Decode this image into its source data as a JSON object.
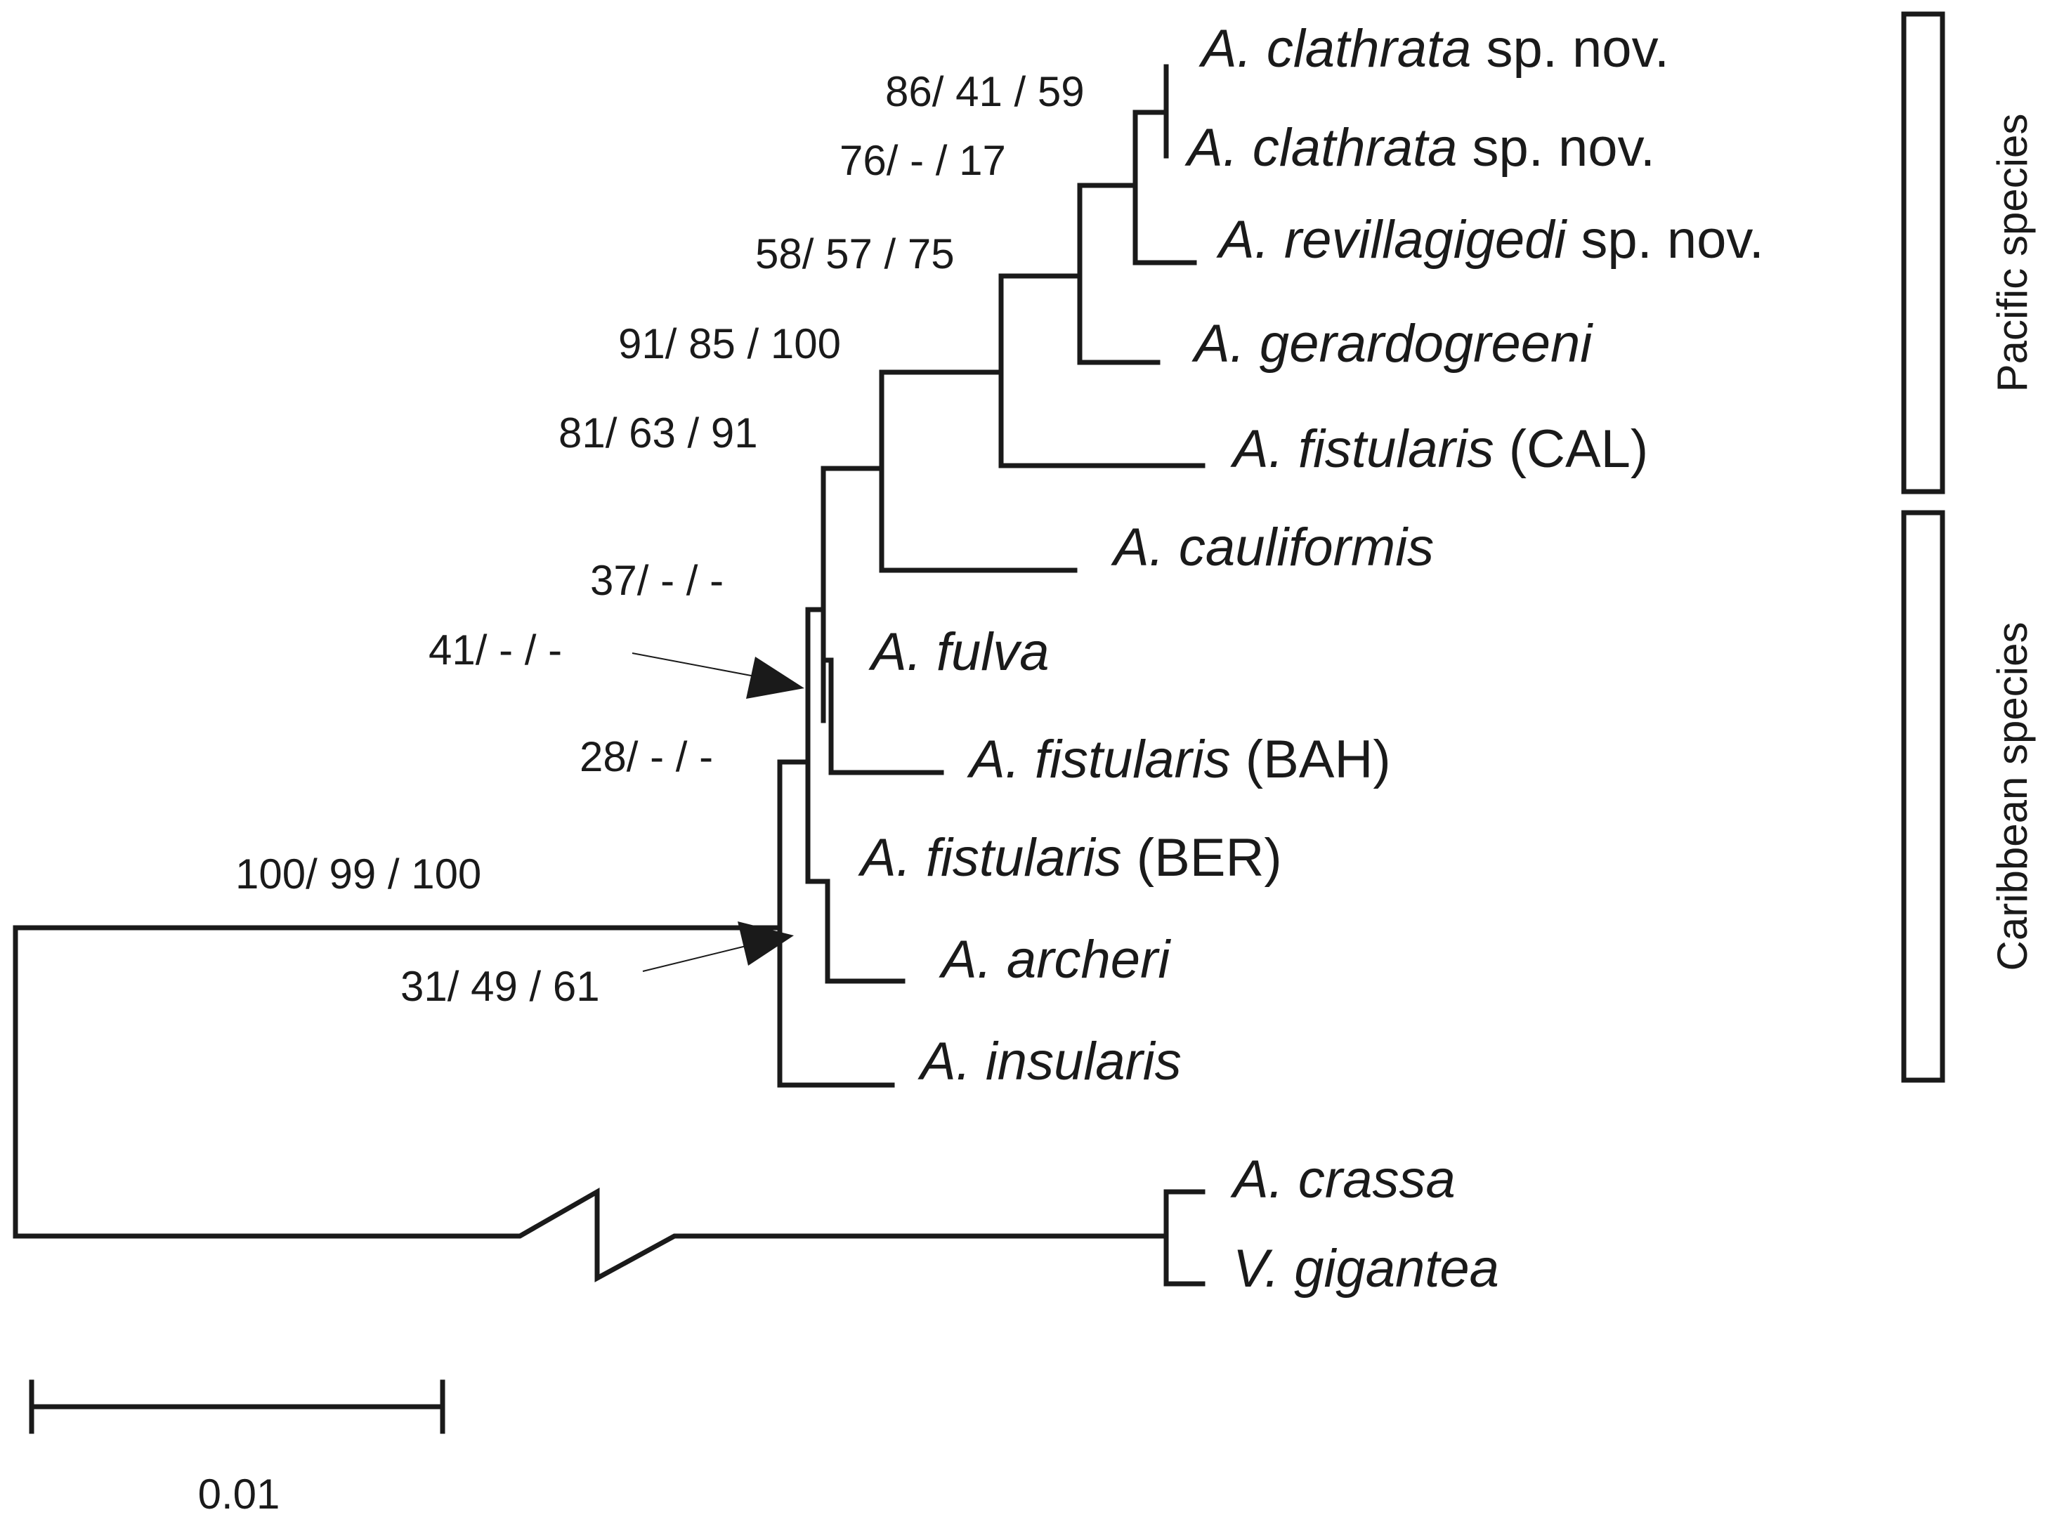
{
  "taxa": [
    {
      "genus": "A. clathrata",
      "suffix": " sp. nov."
    },
    {
      "genus": "A. clathrata",
      "suffix": " sp. nov."
    },
    {
      "genus": "A. revillagigedi",
      "suffix": " sp. nov."
    },
    {
      "genus": "A. gerardogreeni",
      "suffix": ""
    },
    {
      "genus": "A. fistularis",
      "suffix": " (CAL)"
    },
    {
      "genus": "A. cauliformis",
      "suffix": ""
    },
    {
      "genus": "A. fulva",
      "suffix": ""
    },
    {
      "genus": "A. fistularis",
      "suffix": " (BAH)"
    },
    {
      "genus": "A. fistularis",
      "suffix": " (BER)"
    },
    {
      "genus": "A. archeri",
      "suffix": ""
    },
    {
      "genus": "A. insularis",
      "suffix": ""
    },
    {
      "genus": "A. crassa",
      "suffix": ""
    },
    {
      "genus": "V. gigantea",
      "suffix": ""
    }
  ],
  "support_values": [
    "86/ 41 / 59",
    "76/ - / 17",
    "58/ 57 / 75",
    "91/ 85 / 100",
    "81/ 63 / 91",
    "37/ - / -",
    "41/ - / -",
    "28/ - / -",
    "100/ 99 / 100",
    "31/ 49 / 61"
  ],
  "groups": {
    "pacific": "Pacific species",
    "caribbean": "Caribbean species"
  },
  "scale_bar": {
    "label": "0.01"
  }
}
